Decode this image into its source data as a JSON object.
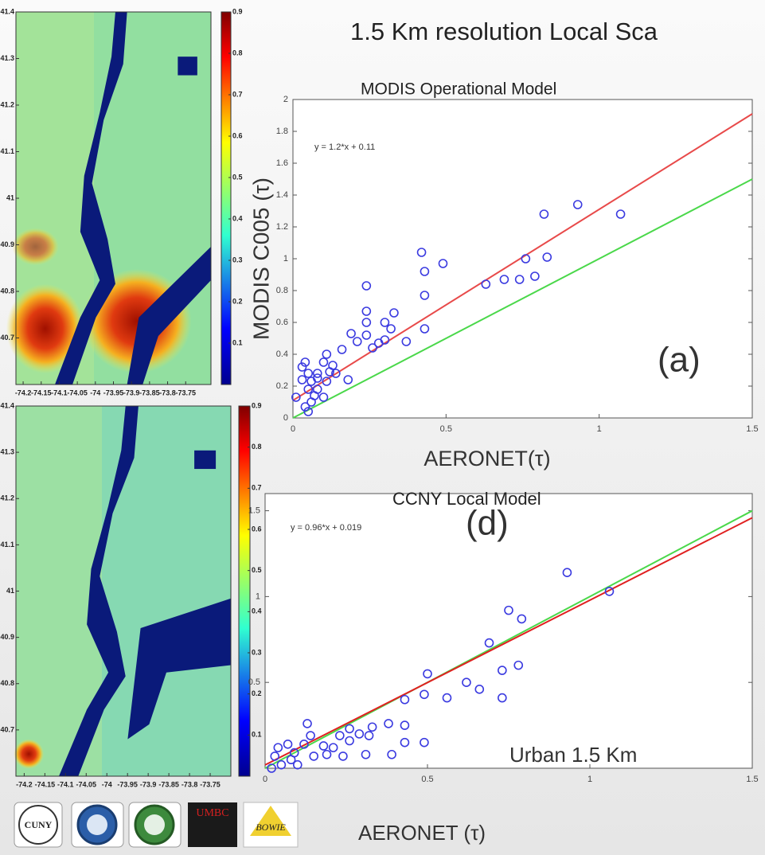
{
  "title": "1.5 Km resolution Local Sca",
  "chart_data": [
    {
      "type": "map",
      "xlim": [
        -74.22,
        -73.68
      ],
      "ylim": [
        40.6,
        41.4
      ],
      "xticks": [
        -74.2,
        -74.15,
        -74.1,
        -74.05,
        -74,
        -73.95,
        -73.9,
        -73.85,
        -73.8,
        -73.75
      ],
      "yticks": [
        41.4,
        41.3,
        41.2,
        41.1,
        41,
        40.9,
        40.8,
        40.7
      ],
      "colorbar_lim": [
        0,
        0.9
      ],
      "colorbar_ticks": [
        0.9,
        0.8,
        0.7,
        0.6,
        0.5,
        0.4,
        0.3,
        0.2,
        0.1
      ]
    },
    {
      "type": "scatter",
      "title": "MODIS Operational Model",
      "x_label": "AERONET(τ)",
      "y_label": "MODIS C005 (τ)",
      "annotations": [
        "y = 1.2*x + 0.11",
        "(a)"
      ],
      "xlim": [
        0,
        1.5
      ],
      "ylim": [
        0,
        2
      ],
      "xticks": [
        0,
        0.5,
        1,
        1.5
      ],
      "yticks": [
        0,
        0.2,
        0.4,
        0.6,
        0.8,
        1,
        1.2,
        1.4,
        1.6,
        1.8,
        2
      ],
      "points": {
        "color": "#3a3ae0",
        "x": [
          0.82,
          0.93,
          1.07,
          0.42,
          0.49,
          0.43,
          0.63,
          0.69,
          0.74,
          0.76,
          0.83,
          0.79,
          0.43,
          0.43,
          0.24,
          0.24,
          0.24,
          0.33,
          0.3,
          0.32,
          0.37,
          0.3,
          0.28,
          0.26,
          0.24,
          0.19,
          0.16,
          0.11,
          0.13,
          0.1,
          0.08,
          0.06,
          0.04,
          0.05,
          0.03,
          0.05,
          0.07,
          0.06,
          0.04,
          0.05,
          0.1,
          0.11,
          0.18,
          0.12,
          0.01,
          0.08,
          0.03,
          0.08,
          0.14,
          0.21
        ],
        "values": [
          1.28,
          1.34,
          1.28,
          1.04,
          0.97,
          0.92,
          0.84,
          0.87,
          0.87,
          1.0,
          1.01,
          0.89,
          0.77,
          0.56,
          0.83,
          0.67,
          0.6,
          0.66,
          0.6,
          0.56,
          0.48,
          0.49,
          0.47,
          0.44,
          0.52,
          0.53,
          0.43,
          0.4,
          0.33,
          0.35,
          0.28,
          0.23,
          0.35,
          0.28,
          0.24,
          0.18,
          0.14,
          0.1,
          0.07,
          0.04,
          0.13,
          0.23,
          0.24,
          0.29,
          0.13,
          0.25,
          0.32,
          0.18,
          0.28,
          0.48
        ]
      },
      "lines": [
        {
          "color": "#e84a4a",
          "x": [
            0,
            1.5
          ],
          "values": [
            0.11,
            1.91
          ]
        },
        {
          "color": "#4ad84a",
          "x": [
            0,
            1.5
          ],
          "values": [
            0,
            1.5
          ]
        }
      ]
    },
    {
      "type": "map",
      "xlim": [
        -74.22,
        -73.7
      ],
      "ylim": [
        40.6,
        41.4
      ],
      "xticks": [
        -74.2,
        -74.15,
        -74.1,
        -74.05,
        -74,
        -73.95,
        -73.9,
        -73.85,
        -73.8,
        -73.75
      ],
      "yticks": [
        41.4,
        41.3,
        41.2,
        41.1,
        41,
        40.9,
        40.8,
        40.7
      ],
      "colorbar_lim": [
        0,
        0.9
      ],
      "colorbar_ticks": [
        0.9,
        0.8,
        0.7,
        0.6,
        0.5,
        0.4,
        0.3,
        0.2,
        0.1
      ]
    },
    {
      "type": "scatter",
      "title": "CCNY Local Model",
      "x_label": "AERONET (τ)",
      "annotations": [
        "y = 0.96*x + 0.019",
        "(d)",
        "Urban 1.5 Km"
      ],
      "xlim": [
        0,
        1.5
      ],
      "ylim": [
        0,
        1.6
      ],
      "xticks": [
        0,
        0.5,
        1,
        1.5
      ],
      "yticks": [
        0.5,
        1,
        1.5
      ],
      "points": {
        "color": "#3a3ae0",
        "x": [
          0.93,
          1.06,
          0.75,
          0.79,
          0.69,
          0.78,
          0.73,
          0.5,
          0.62,
          0.66,
          0.73,
          0.56,
          0.49,
          0.43,
          0.43,
          0.49,
          0.39,
          0.43,
          0.38,
          0.33,
          0.31,
          0.29,
          0.26,
          0.32,
          0.23,
          0.18,
          0.14,
          0.12,
          0.09,
          0.08,
          0.05,
          0.03,
          0.04,
          0.07,
          0.02,
          0.1,
          0.19,
          0.24,
          0.15,
          0.21,
          0.13,
          0.26
        ],
        "values": [
          1.14,
          1.03,
          0.92,
          0.87,
          0.73,
          0.6,
          0.57,
          0.55,
          0.5,
          0.46,
          0.41,
          0.41,
          0.43,
          0.4,
          0.25,
          0.15,
          0.08,
          0.15,
          0.26,
          0.24,
          0.08,
          0.2,
          0.16,
          0.19,
          0.19,
          0.13,
          0.19,
          0.14,
          0.09,
          0.05,
          0.02,
          0.07,
          0.12,
          0.14,
          0.0,
          0.02,
          0.08,
          0.07,
          0.07,
          0.12,
          0.26,
          0.23
        ]
      },
      "lines": [
        {
          "color": "#4ad84a",
          "x": [
            0,
            1.5
          ],
          "values": [
            0,
            1.5
          ]
        },
        {
          "color": "#e02020",
          "x": [
            0,
            1.5
          ],
          "values": [
            0.019,
            1.459
          ]
        }
      ]
    }
  ],
  "logos": [
    "CUNY",
    "UMBC",
    "BOWIE"
  ]
}
